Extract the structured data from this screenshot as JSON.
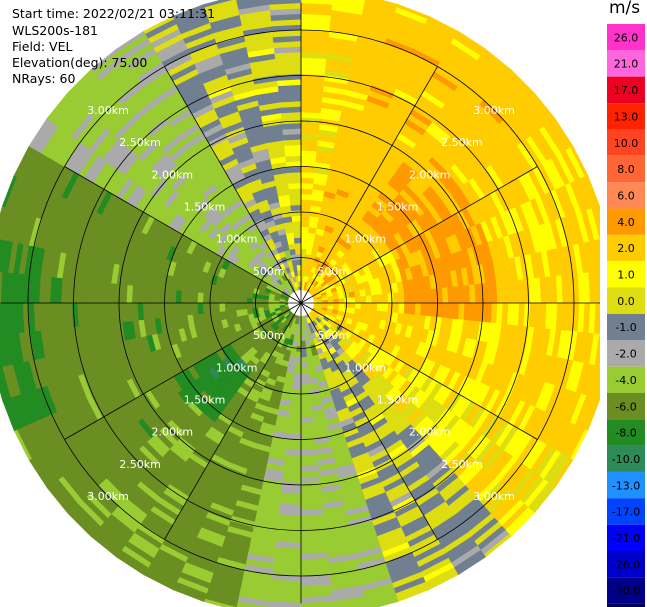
{
  "info": {
    "start_time": "Start time: 2022/02/21 03:11:31",
    "instrument": "WLS200s-181",
    "field": "Field: VEL",
    "elevation": "Elevation(deg): 75.00",
    "nrays": "NRays: 60"
  },
  "chart_data": {
    "type": "heatmap",
    "subtype": "polar-ppi",
    "title": "",
    "field": "VEL",
    "units": "m/s",
    "range_rings_km": [
      0.5,
      1.0,
      1.5,
      2.0,
      2.5,
      3.0
    ],
    "range_ring_labels": [
      "500m",
      "1.00km",
      "1.50km",
      "2.00km",
      "2.50km",
      "3.00km"
    ],
    "max_range_km": 3.45,
    "radial_lines_deg": [
      0,
      30,
      60,
      90,
      120,
      150,
      180,
      210,
      240,
      270,
      300,
      330
    ],
    "nrays": 60,
    "colorbar": {
      "label": "m/s",
      "ticks": [
        "26.0",
        "21.0",
        "17.0",
        "13.0",
        "10.0",
        "8.0",
        "6.0",
        "4.0",
        "2.0",
        "1.0",
        "0.0",
        "-1.0",
        "-2.0",
        "-4.0",
        "-6.0",
        "-8.0",
        "-10.0",
        "-13.0",
        "-17.0",
        "-21.0",
        "-26.0",
        "-30.0"
      ],
      "colors": [
        "#ff33cc",
        "#ff66dd",
        "#ee0022",
        "#ff2200",
        "#ff4422",
        "#ff6633",
        "#ff8855",
        "#ff9900",
        "#ffcc00",
        "#ffff00",
        "#dddd11",
        "#708090",
        "#aaaaaa",
        "#99cc33",
        "#6b8e23",
        "#228b22",
        "#2e8b57",
        "#1e90ff",
        "#0044ff",
        "#0000ff",
        "#0000cc",
        "#000088",
        "#000055"
      ]
    },
    "velocity_model": {
      "description": "Approximate radial-velocity field: positive (yellow/orange) on the east side, negative (green) on west/south-west side, near-zero (gray) band along N and SE boundaries.",
      "sectors": [
        {
          "az_from": 0,
          "az_to": 10,
          "velocity": 2.0
        },
        {
          "az_from": 10,
          "az_to": 55,
          "velocity": 3.0
        },
        {
          "az_from": 55,
          "az_to": 120,
          "velocity": 2.5
        },
        {
          "az_from": 120,
          "az_to": 150,
          "velocity": 1.5
        },
        {
          "az_from": 150,
          "az_to": 165,
          "velocity": 0.0
        },
        {
          "az_from": 165,
          "az_to": 195,
          "velocity": -2.5
        },
        {
          "az_from": 195,
          "az_to": 230,
          "velocity": -4.5
        },
        {
          "az_from": 230,
          "az_to": 300,
          "velocity": -5.0
        },
        {
          "az_from": 300,
          "az_to": 330,
          "velocity": -2.5
        },
        {
          "az_from": 330,
          "az_to": 350,
          "velocity": -0.5
        },
        {
          "az_from": 350,
          "az_to": 360,
          "velocity": 0.5
        }
      ],
      "features": [
        {
          "name": "positive-core",
          "az_from": 35,
          "az_to": 95,
          "r_from_km": 1.15,
          "r_to_km": 2.15,
          "velocity": 4.5
        },
        {
          "name": "gray-band-north",
          "az_from": 335,
          "az_to": 360,
          "r_from_km": 1.8,
          "r_to_km": 3.45,
          "velocity": 0.0
        },
        {
          "name": "gray-band-southeast",
          "az_from": 140,
          "az_to": 160,
          "r_from_km": 0.4,
          "r_to_km": 3.45,
          "velocity": 0.0
        },
        {
          "name": "teal-patch",
          "az_from": 215,
          "az_to": 240,
          "r_from_km": 0.9,
          "r_to_km": 1.6,
          "velocity": -7.0
        },
        {
          "name": "teal-edge-west",
          "az_from": 245,
          "az_to": 285,
          "r_from_km": 2.9,
          "r_to_km": 3.45,
          "velocity": -6.5
        }
      ]
    }
  }
}
